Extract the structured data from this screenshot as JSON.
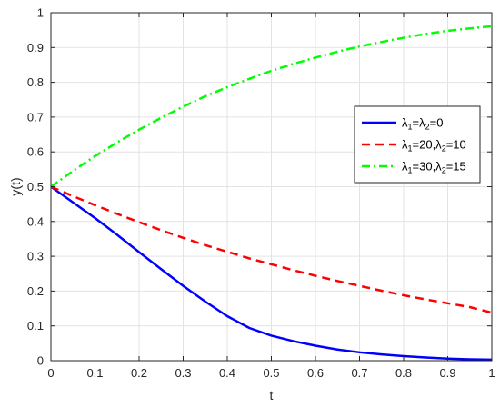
{
  "chart_data": {
    "type": "line",
    "xlabel": "t",
    "ylabel": "y(t)",
    "xlim": [
      0,
      1
    ],
    "ylim": [
      0,
      1
    ],
    "xticks": [
      0,
      0.1,
      0.2,
      0.3,
      0.4,
      0.5,
      0.6,
      0.7,
      0.8,
      0.9,
      1
    ],
    "yticks": [
      0,
      0.1,
      0.2,
      0.3,
      0.4,
      0.5,
      0.6,
      0.7,
      0.8,
      0.9,
      1
    ],
    "xtick_labels": [
      "0",
      "0.1",
      "0.2",
      "0.3",
      "0.4",
      "0.5",
      "0.6",
      "0.7",
      "0.8",
      "0.9",
      "1"
    ],
    "ytick_labels": [
      "0",
      "0.1",
      "0.2",
      "0.3",
      "0.4",
      "0.5",
      "0.6",
      "0.7",
      "0.8",
      "0.9",
      "1"
    ],
    "grid": true,
    "legend_position": "right",
    "x": [
      0,
      0.05,
      0.1,
      0.15,
      0.2,
      0.25,
      0.3,
      0.35,
      0.4,
      0.45,
      0.5,
      0.55,
      0.6,
      0.65,
      0.7,
      0.75,
      0.8,
      0.85,
      0.9,
      0.95,
      1
    ],
    "series": [
      {
        "legend": {
          "a": "λ",
          "s1": "1",
          "b": "=λ",
          "s2": "2",
          "c": "=0"
        },
        "color": "#0000ff",
        "dash": "solid",
        "values": [
          0.5,
          0.455,
          0.41,
          0.362,
          0.312,
          0.263,
          0.215,
          0.17,
          0.128,
          0.094,
          0.072,
          0.056,
          0.043,
          0.032,
          0.024,
          0.018,
          0.013,
          0.009,
          0.006,
          0.004,
          0.003
        ]
      },
      {
        "legend": {
          "a": "λ",
          "s1": "1",
          "b": "=20,λ",
          "s2": "2",
          "c": "=10"
        },
        "color": "#ff0000",
        "dash": "dashed",
        "values": [
          0.5,
          0.473,
          0.447,
          0.422,
          0.398,
          0.375,
          0.353,
          0.332,
          0.313,
          0.294,
          0.277,
          0.26,
          0.244,
          0.229,
          0.215,
          0.201,
          0.188,
          0.176,
          0.165,
          0.154,
          0.138
        ]
      },
      {
        "legend": {
          "a": "λ",
          "s1": "1",
          "b": "=30,λ",
          "s2": "2",
          "c": "=15"
        },
        "color": "#00ff00",
        "dash": "dashdot",
        "values": [
          0.5,
          0.545,
          0.588,
          0.627,
          0.664,
          0.698,
          0.73,
          0.76,
          0.786,
          0.81,
          0.833,
          0.853,
          0.871,
          0.888,
          0.903,
          0.916,
          0.928,
          0.939,
          0.948,
          0.955,
          0.961
        ]
      }
    ]
  }
}
